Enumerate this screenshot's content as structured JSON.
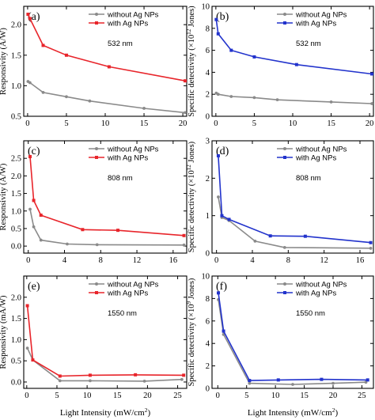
{
  "xlabel": "Light Intensity (mW/cm",
  "xlabel_sup": "2",
  "xlabel_close": ")",
  "colors": {
    "gray": "#8a8a8a",
    "red": "#e8252b",
    "blue": "#2233cc"
  },
  "chart_data": [
    {
      "type": "line",
      "panel_label": "(a)",
      "annotation": "532 nm",
      "ylabel": "Responsivity (A/W)",
      "xlim": [
        -0.5,
        20.5
      ],
      "ylim": [
        0.5,
        2.3
      ],
      "xticks": [
        0,
        5,
        10,
        15,
        20
      ],
      "yticks": [
        0.5,
        1.0,
        1.5,
        2.0
      ],
      "ytick_labels": [
        "0.5",
        "1.0",
        "1.5",
        "2.0"
      ],
      "series": [
        {
          "name": "without Ag NPs",
          "color": "gray",
          "marker": "circle",
          "x": [
            0.05,
            0.3,
            2,
            5,
            8,
            15,
            20.3
          ],
          "y": [
            1.07,
            1.05,
            0.89,
            0.82,
            0.75,
            0.63,
            0.56
          ]
        },
        {
          "name": "with Ag NPs",
          "color": "red",
          "marker": "square",
          "x": [
            0.05,
            0.3,
            2,
            5,
            10.5,
            20.3
          ],
          "y": [
            2.17,
            2.1,
            1.66,
            1.5,
            1.31,
            1.08
          ]
        }
      ]
    },
    {
      "type": "line",
      "panel_label": "(b)",
      "annotation": "532 nm",
      "ylabel": "Specific detectivity (×10",
      "ylabel_sup": "12",
      "ylabel_tail": " Jones)",
      "xlim": [
        -0.5,
        20.5
      ],
      "ylim": [
        0,
        10
      ],
      "xticks": [
        0,
        5,
        10,
        15,
        20
      ],
      "yticks": [
        0,
        2,
        4,
        6,
        8,
        10
      ],
      "ytick_labels": [
        "0",
        "2",
        "4",
        "6",
        "8",
        "10"
      ],
      "series": [
        {
          "name": "without Ag NPs",
          "color": "gray",
          "marker": "circle",
          "x": [
            0.05,
            0.3,
            2,
            5,
            8,
            15,
            20.3
          ],
          "y": [
            2.1,
            2.0,
            1.8,
            1.7,
            1.5,
            1.3,
            1.15
          ]
        },
        {
          "name": "with Ag NPs",
          "color": "blue",
          "marker": "square",
          "x": [
            0.05,
            0.3,
            2,
            5,
            10.5,
            20.3
          ],
          "y": [
            8.8,
            7.5,
            6.0,
            5.4,
            4.7,
            3.85
          ]
        }
      ]
    },
    {
      "type": "line",
      "panel_label": "(c)",
      "annotation": "808 nm",
      "ylabel": "Responsivity (A/W)",
      "xlim": [
        -0.5,
        17.5
      ],
      "ylim": [
        -0.2,
        3.0
      ],
      "xticks": [
        0,
        4,
        8,
        12,
        16
      ],
      "yticks": [
        0.0,
        0.5,
        1.0,
        1.5,
        2.0,
        2.5
      ],
      "ytick_labels": [
        "0.0",
        "0.5",
        "1.0",
        "1.5",
        "2.0",
        "2.5"
      ],
      "series": [
        {
          "name": "without Ag NPs",
          "color": "gray",
          "marker": "circle",
          "x": [
            0.2,
            0.6,
            1.4,
            4.3,
            7.6,
            17.2
          ],
          "y": [
            1.05,
            0.55,
            0.17,
            0.06,
            0.04,
            0.03
          ]
        },
        {
          "name": "with Ag NPs",
          "color": "red",
          "marker": "square",
          "x": [
            0.2,
            0.6,
            1.4,
            6.0,
            9.9,
            17.2
          ],
          "y": [
            2.55,
            1.3,
            0.88,
            0.47,
            0.45,
            0.3
          ]
        }
      ]
    },
    {
      "type": "line",
      "panel_label": "(d)",
      "annotation": "808 nm",
      "ylabel": "Specific detectivity (×10",
      "ylabel_sup": "12",
      "ylabel_tail": " Jones)",
      "xlim": [
        -0.5,
        17.5
      ],
      "ylim": [
        0,
        3
      ],
      "xticks": [
        0,
        4,
        8,
        12,
        16
      ],
      "yticks": [
        0,
        1,
        2,
        3
      ],
      "ytick_labels": [
        "0",
        "1",
        "2",
        "3"
      ],
      "series": [
        {
          "name": "without Ag NPs",
          "color": "gray",
          "marker": "circle",
          "x": [
            0.2,
            0.6,
            1.4,
            4.3,
            7.6,
            17.2
          ],
          "y": [
            1.5,
            0.95,
            0.87,
            0.32,
            0.15,
            0.13
          ]
        },
        {
          "name": "with Ag NPs",
          "color": "blue",
          "marker": "square",
          "x": [
            0.2,
            0.6,
            1.4,
            6.0,
            9.9,
            17.2
          ],
          "y": [
            2.6,
            1.0,
            0.9,
            0.46,
            0.45,
            0.28
          ]
        }
      ]
    },
    {
      "type": "line",
      "panel_label": "(e)",
      "annotation": "1550 nm",
      "ylabel": "Responsivity (mA/W)",
      "xlim": [
        -0.5,
        26.5
      ],
      "ylim": [
        -0.15,
        2.5
      ],
      "xticks": [
        0,
        5,
        10,
        15,
        20,
        25
      ],
      "yticks": [
        0.0,
        0.5,
        1.0,
        1.5,
        2.0
      ],
      "ytick_labels": [
        "0.0",
        "0.5",
        "1.0",
        "1.5",
        "2.0"
      ],
      "series": [
        {
          "name": "without Ag NPs",
          "color": "gray",
          "marker": "circle",
          "x": [
            0.1,
            1.0,
            5.5,
            10.5,
            19.5,
            25.7
          ],
          "y": [
            0.8,
            0.52,
            0.03,
            0.03,
            0.02,
            0.06
          ]
        },
        {
          "name": "with Ag NPs",
          "color": "red",
          "marker": "square",
          "x": [
            0.1,
            1.0,
            5.5,
            10.5,
            18.0,
            26.0
          ],
          "y": [
            1.8,
            0.52,
            0.14,
            0.16,
            0.17,
            0.16
          ]
        }
      ]
    },
    {
      "type": "line",
      "panel_label": "(f)",
      "annotation": "1550 nm",
      "ylabel": "Specific detectivity (×10",
      "ylabel_sup": "9",
      "ylabel_tail": " Jones)",
      "xlim": [
        -1,
        27
      ],
      "ylim": [
        0,
        10
      ],
      "xticks": [
        0,
        5,
        10,
        15,
        20,
        25
      ],
      "yticks": [
        0,
        2,
        4,
        6,
        8,
        10
      ],
      "ytick_labels": [
        "0",
        "2",
        "4",
        "6",
        "8",
        "10"
      ],
      "series": [
        {
          "name": "without Ag NPs",
          "color": "gray",
          "marker": "circle",
          "x": [
            0.1,
            1.0,
            5.5,
            13.0,
            20.0,
            25.7
          ],
          "y": [
            7.9,
            4.8,
            0.45,
            0.35,
            0.45,
            0.55
          ]
        },
        {
          "name": "with Ag NPs",
          "color": "blue",
          "marker": "square",
          "x": [
            0.1,
            1.0,
            5.5,
            10.5,
            18.0,
            26.0
          ],
          "y": [
            8.5,
            5.1,
            0.7,
            0.75,
            0.8,
            0.75
          ]
        }
      ]
    }
  ]
}
